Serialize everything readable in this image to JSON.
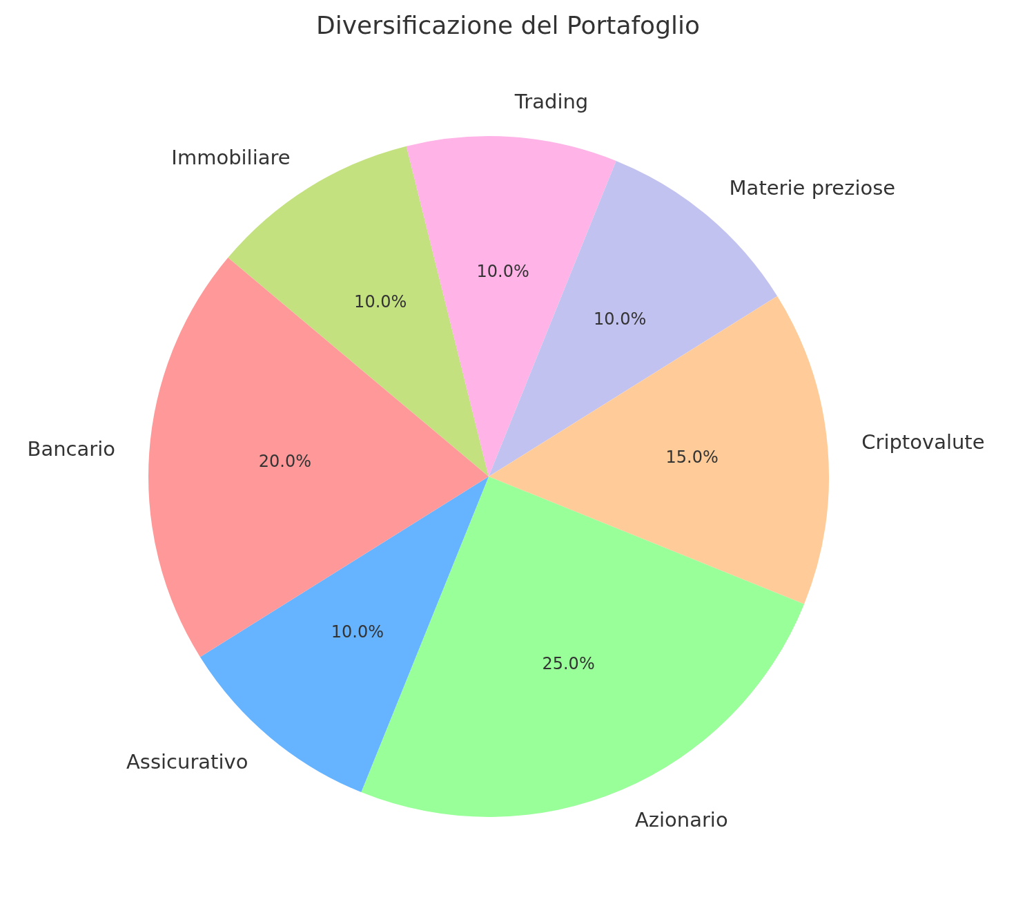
{
  "chart_data": {
    "type": "pie",
    "title": "Diversificazione del Portafoglio",
    "categories": [
      "Bancario",
      "Assicurativo",
      "Azionario",
      "Criptovalute",
      "Materie preziose",
      "Trading",
      "Immobiliare"
    ],
    "values": [
      20,
      10,
      25,
      15,
      10,
      10,
      10
    ],
    "value_labels": [
      "20.0%",
      "10.0%",
      "25.0%",
      "15.0%",
      "10.0%",
      "10.0%",
      "10.0%"
    ],
    "colors": [
      "#ff9999",
      "#66b3ff",
      "#99ff99",
      "#ffcc99",
      "#c2c2f0",
      "#ffb3e6",
      "#c4e17f"
    ],
    "legend": false
  }
}
